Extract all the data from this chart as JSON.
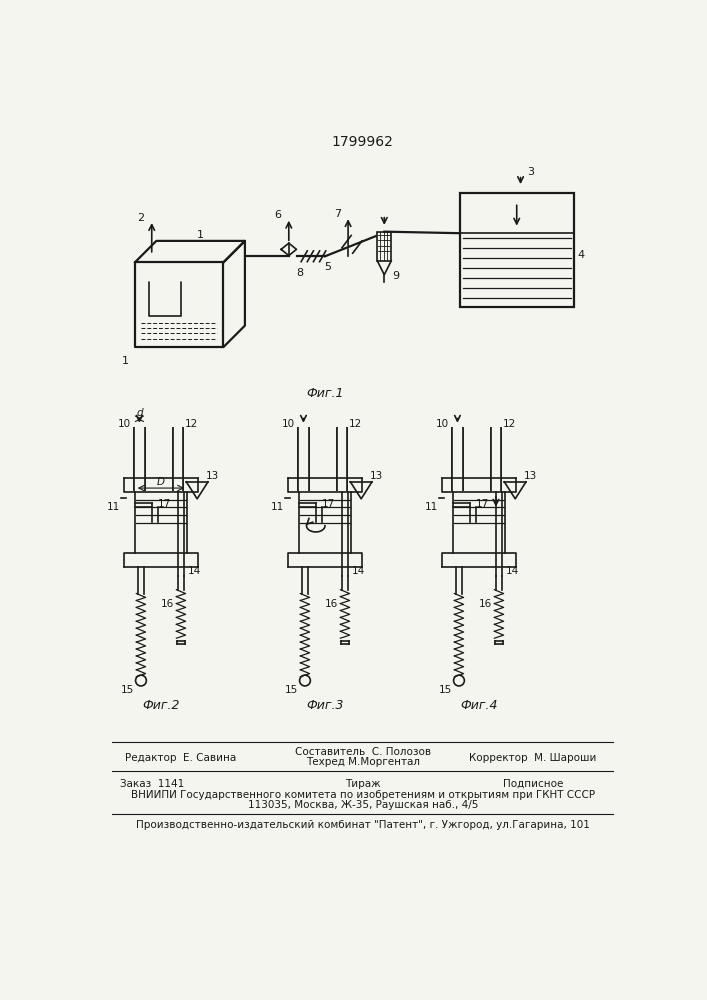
{
  "patent_number": "1799962",
  "fig1_caption": "Фиг.1",
  "fig2_caption": "Фиг.2",
  "fig3_caption": "Фиг.3",
  "fig4_caption": "Фиг.4",
  "footer_line1_left": "Редактор  Е. Савина",
  "footer_line1_center_top": "Составитель  С. Полозов",
  "footer_line1_center_bot": "Техред М.Моргентал",
  "footer_line1_right": "Корректор  М. Шароши",
  "footer_line2_left": "Заказ  1141",
  "footer_line2_center": "Тираж",
  "footer_line2_right": "Подписное",
  "footer_line3": "ВНИИПИ Государственного комитета по изобретениям и открытиям при ГКНТ СССР",
  "footer_line4": "113035, Москва, Ж-35, Раушская наб., 4/5",
  "footer_line5": "Производственно-издательский комбинат \"Патент\", г. Ужгород, ул.Гагарина, 101",
  "bg_color": "#f5f5f0",
  "line_color": "#1a1a1a"
}
